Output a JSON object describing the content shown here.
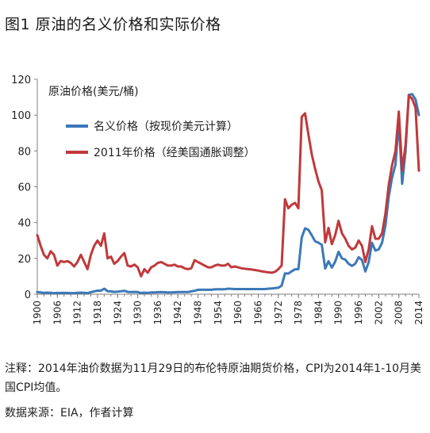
{
  "figure_title": "图1 原油的名义价格和实际价格",
  "note": "注释：2014年油价数据为11月29日的布伦特原油期货价格，CPI为2014年1-10月美国CPI均值。",
  "source": "数据来源：EIA，作者计算",
  "chart_data": {
    "type": "line",
    "title": "",
    "ylabel": "原油价格(美元/桶)",
    "xlabel": "",
    "ylim": [
      0,
      120
    ],
    "yticks": [
      0,
      20,
      40,
      60,
      80,
      100,
      120
    ],
    "xlim": [
      1900,
      2014
    ],
    "xticks": [
      1900,
      1906,
      1912,
      1918,
      1924,
      1930,
      1936,
      1942,
      1948,
      1954,
      1960,
      1966,
      1972,
      1978,
      1984,
      1990,
      1996,
      2002,
      2008,
      2014
    ],
    "grid": false,
    "legend_placement": "top-left",
    "x": [
      1900,
      1901,
      1902,
      1903,
      1904,
      1905,
      1906,
      1907,
      1908,
      1909,
      1910,
      1911,
      1912,
      1913,
      1914,
      1915,
      1916,
      1917,
      1918,
      1919,
      1920,
      1921,
      1922,
      1923,
      1924,
      1925,
      1926,
      1927,
      1928,
      1929,
      1930,
      1931,
      1932,
      1933,
      1934,
      1935,
      1936,
      1937,
      1938,
      1939,
      1940,
      1941,
      1942,
      1943,
      1944,
      1945,
      1946,
      1947,
      1948,
      1949,
      1950,
      1951,
      1952,
      1953,
      1954,
      1955,
      1956,
      1957,
      1958,
      1959,
      1960,
      1961,
      1962,
      1963,
      1964,
      1965,
      1966,
      1967,
      1968,
      1969,
      1970,
      1971,
      1972,
      1973,
      1974,
      1975,
      1976,
      1977,
      1978,
      1979,
      1980,
      1981,
      1982,
      1983,
      1984,
      1985,
      1986,
      1987,
      1988,
      1989,
      1990,
      1991,
      1992,
      1993,
      1994,
      1995,
      1996,
      1997,
      1998,
      1999,
      2000,
      2001,
      2002,
      2003,
      2004,
      2005,
      2006,
      2007,
      2008,
      2009,
      2010,
      2011,
      2012,
      2013,
      2014
    ],
    "series": [
      {
        "name": "名义价格（按现价美元计算）",
        "color": "#3b78b8",
        "values": [
          1.2,
          1.0,
          0.8,
          0.9,
          0.8,
          0.6,
          0.7,
          0.7,
          0.7,
          0.7,
          0.6,
          0.6,
          0.8,
          0.9,
          0.8,
          0.6,
          1.1,
          1.6,
          2.0,
          2.0,
          3.1,
          1.7,
          1.6,
          1.3,
          1.4,
          1.7,
          1.9,
          1.3,
          1.2,
          1.3,
          1.2,
          0.7,
          0.9,
          0.7,
          1.0,
          1.0,
          1.1,
          1.2,
          1.1,
          1.0,
          1.0,
          1.1,
          1.2,
          1.2,
          1.2,
          1.2,
          1.6,
          1.9,
          2.5,
          2.5,
          2.5,
          2.5,
          2.5,
          2.7,
          2.8,
          2.8,
          2.8,
          3.1,
          3.0,
          2.9,
          2.9,
          2.9,
          2.9,
          2.9,
          2.9,
          2.9,
          2.9,
          2.9,
          2.9,
          3.1,
          3.2,
          3.4,
          3.6,
          4.8,
          11.6,
          11.5,
          12.8,
          13.9,
          14.0,
          31.6,
          36.8,
          35.9,
          32.9,
          29.6,
          28.8,
          27.6,
          14.4,
          18.4,
          14.9,
          18.2,
          23.7,
          20.0,
          19.3,
          17.0,
          15.8,
          17.0,
          20.7,
          19.1,
          12.7,
          17.9,
          28.7,
          24.4,
          25.0,
          28.8,
          38.3,
          54.5,
          65.1,
          72.4,
          97.0,
          61.7,
          79.6,
          111.3,
          111.7,
          108.7,
          100.0
        ]
      },
      {
        "name": "2011年价格（经美国通胀调整）",
        "color": "#c0393b",
        "values": [
          33.0,
          27.0,
          22.0,
          20.0,
          24.0,
          22.0,
          16.0,
          18.5,
          18.0,
          18.5,
          17.5,
          15.5,
          18.0,
          22.0,
          18.0,
          14.0,
          22.0,
          27.0,
          30.0,
          27.0,
          34.0,
          20.0,
          21.0,
          17.0,
          18.5,
          21.0,
          23.0,
          16.0,
          15.5,
          16.5,
          15.0,
          10.0,
          14.0,
          12.0,
          15.0,
          16.0,
          17.5,
          18.0,
          17.0,
          16.0,
          16.0,
          16.5,
          15.5,
          15.5,
          14.5,
          14.0,
          14.5,
          19.0,
          18.0,
          17.0,
          16.0,
          15.0,
          15.0,
          16.0,
          16.5,
          16.0,
          16.0,
          17.0,
          15.0,
          15.5,
          15.0,
          14.5,
          14.2,
          14.0,
          13.8,
          13.5,
          13.2,
          12.8,
          12.5,
          12.2,
          12.0,
          12.5,
          14.0,
          16.0,
          53.0,
          48.0,
          50.0,
          51.0,
          48.0,
          99.0,
          101.0,
          89.0,
          78.0,
          70.0,
          63.0,
          58.0,
          29.0,
          37.0,
          28.0,
          33.0,
          41.0,
          34.0,
          31.0,
          27.0,
          25.0,
          26.0,
          30.0,
          27.0,
          18.0,
          25.0,
          38.0,
          31.0,
          31.0,
          34.0,
          45.0,
          61.0,
          72.0,
          80.0,
          102.0,
          69.0,
          83.0,
          111.0,
          109.0,
          104.0,
          69.0
        ]
      }
    ]
  }
}
